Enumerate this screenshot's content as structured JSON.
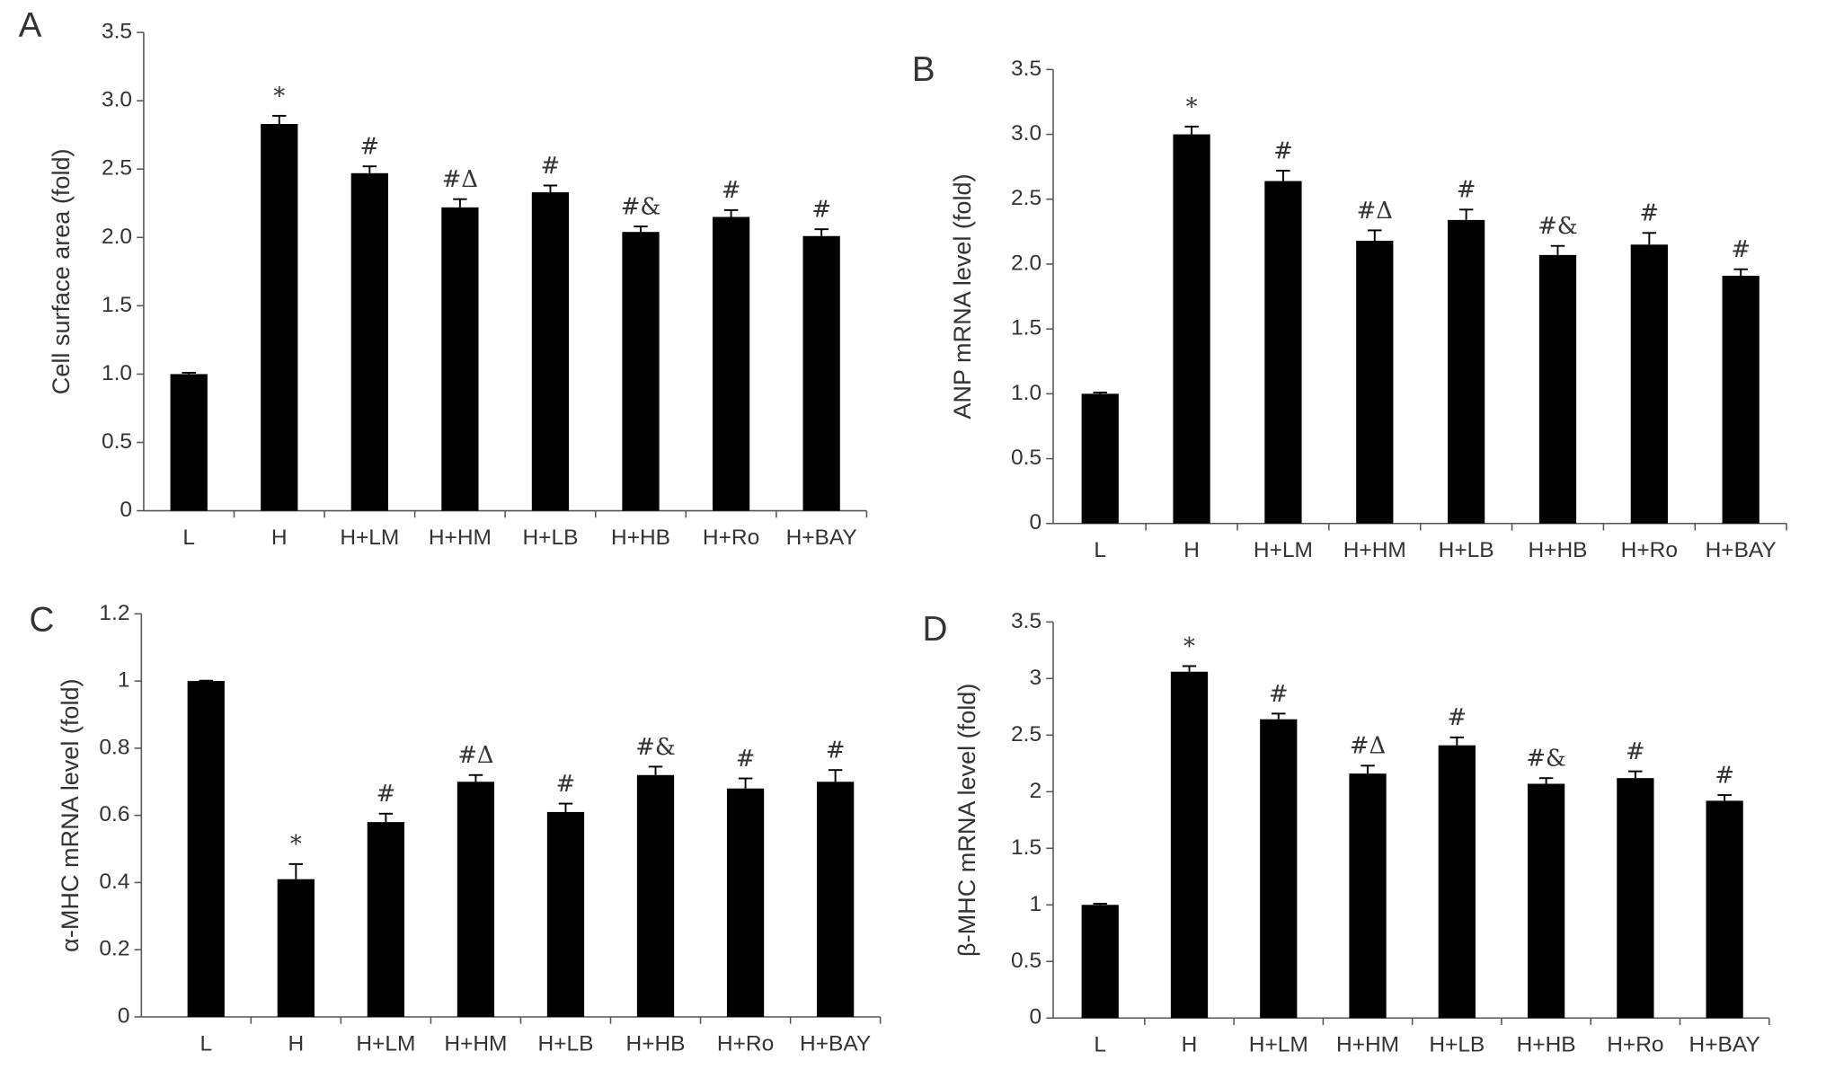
{
  "chart_data": [
    {
      "type": "bar",
      "title": "A",
      "y_label": "Cell surface area (fold)",
      "categories": [
        "L",
        "H",
        "H+LM",
        "H+HM",
        "H+LB",
        "H+HB",
        "H+Ro",
        "H+BAY"
      ],
      "values": [
        1.0,
        2.83,
        2.47,
        2.22,
        2.33,
        2.04,
        2.15,
        2.01
      ],
      "errors": [
        0.01,
        0.06,
        0.05,
        0.06,
        0.05,
        0.04,
        0.05,
        0.05
      ],
      "annotations": [
        null,
        "*",
        "#",
        "#Δ",
        "#",
        "#&",
        "#",
        "#"
      ],
      "color": "#000000",
      "ylim": [
        0,
        3.5
      ],
      "yticks": [
        0,
        0.5,
        {
          "value": 1,
          "label": "1.0"
        },
        1.5,
        {
          "value": 2,
          "label": "2.0"
        },
        2.5,
        {
          "value": 3,
          "label": "3.0"
        },
        3.5
      ]
    },
    {
      "type": "bar",
      "title": "B",
      "y_label": "ANP mRNA level (fold)",
      "categories": [
        "L",
        "H",
        "H+LM",
        "H+HM",
        "H+LB",
        "H+HB",
        "H+Ro",
        "H+BAY"
      ],
      "values": [
        1.0,
        3.0,
        2.64,
        2.18,
        2.34,
        2.07,
        2.15,
        1.91
      ],
      "errors": [
        0.01,
        0.06,
        0.08,
        0.08,
        0.08,
        0.07,
        0.09,
        0.05
      ],
      "annotations": [
        null,
        "*",
        "#",
        "#Δ",
        "#",
        "#&",
        "#",
        "#"
      ],
      "color": "#000000",
      "ylim": [
        0,
        3.5
      ],
      "yticks": [
        0,
        0.5,
        {
          "value": 1,
          "label": "1.0"
        },
        1.5,
        {
          "value": 2,
          "label": "2.0"
        },
        2.5,
        {
          "value": 3,
          "label": "3.0"
        },
        3.5
      ]
    },
    {
      "type": "bar",
      "title": "C",
      "y_label": "α-MHC mRNA level (fold)",
      "categories": [
        "L",
        "H",
        "H+LM",
        "H+HM",
        "H+LB",
        "H+HB",
        "H+Ro",
        "H+BAY"
      ],
      "values": [
        1.0,
        0.41,
        0.58,
        0.7,
        0.61,
        0.72,
        0.68,
        0.7
      ],
      "errors": [
        0.001,
        0.045,
        0.025,
        0.02,
        0.025,
        0.025,
        0.03,
        0.035
      ],
      "annotations": [
        null,
        "*",
        "#",
        "#Δ",
        "#",
        "#&",
        "#",
        "#"
      ],
      "color": "#000000",
      "ylim": [
        0,
        1.2
      ],
      "yticks": [
        0,
        0.2,
        0.4,
        0.6,
        0.8,
        1,
        1.2
      ]
    },
    {
      "type": "bar",
      "title": "D",
      "y_label": "β-MHC mRNA level (fold)",
      "categories": [
        "L",
        "H",
        "H+LM",
        "H+HM",
        "H+LB",
        "H+HB",
        "H+Ro",
        "H+BAY"
      ],
      "values": [
        1.0,
        3.06,
        2.64,
        2.16,
        2.41,
        2.07,
        2.12,
        1.92
      ],
      "errors": [
        0.01,
        0.05,
        0.05,
        0.07,
        0.07,
        0.05,
        0.06,
        0.05
      ],
      "annotations": [
        null,
        "*",
        "#",
        "#Δ",
        "#",
        "#&",
        "#",
        "#"
      ],
      "color": "#000000",
      "ylim": [
        0,
        3.5
      ],
      "yticks": [
        0,
        0.5,
        1,
        1.5,
        2,
        2.5,
        3,
        3.5
      ]
    }
  ]
}
